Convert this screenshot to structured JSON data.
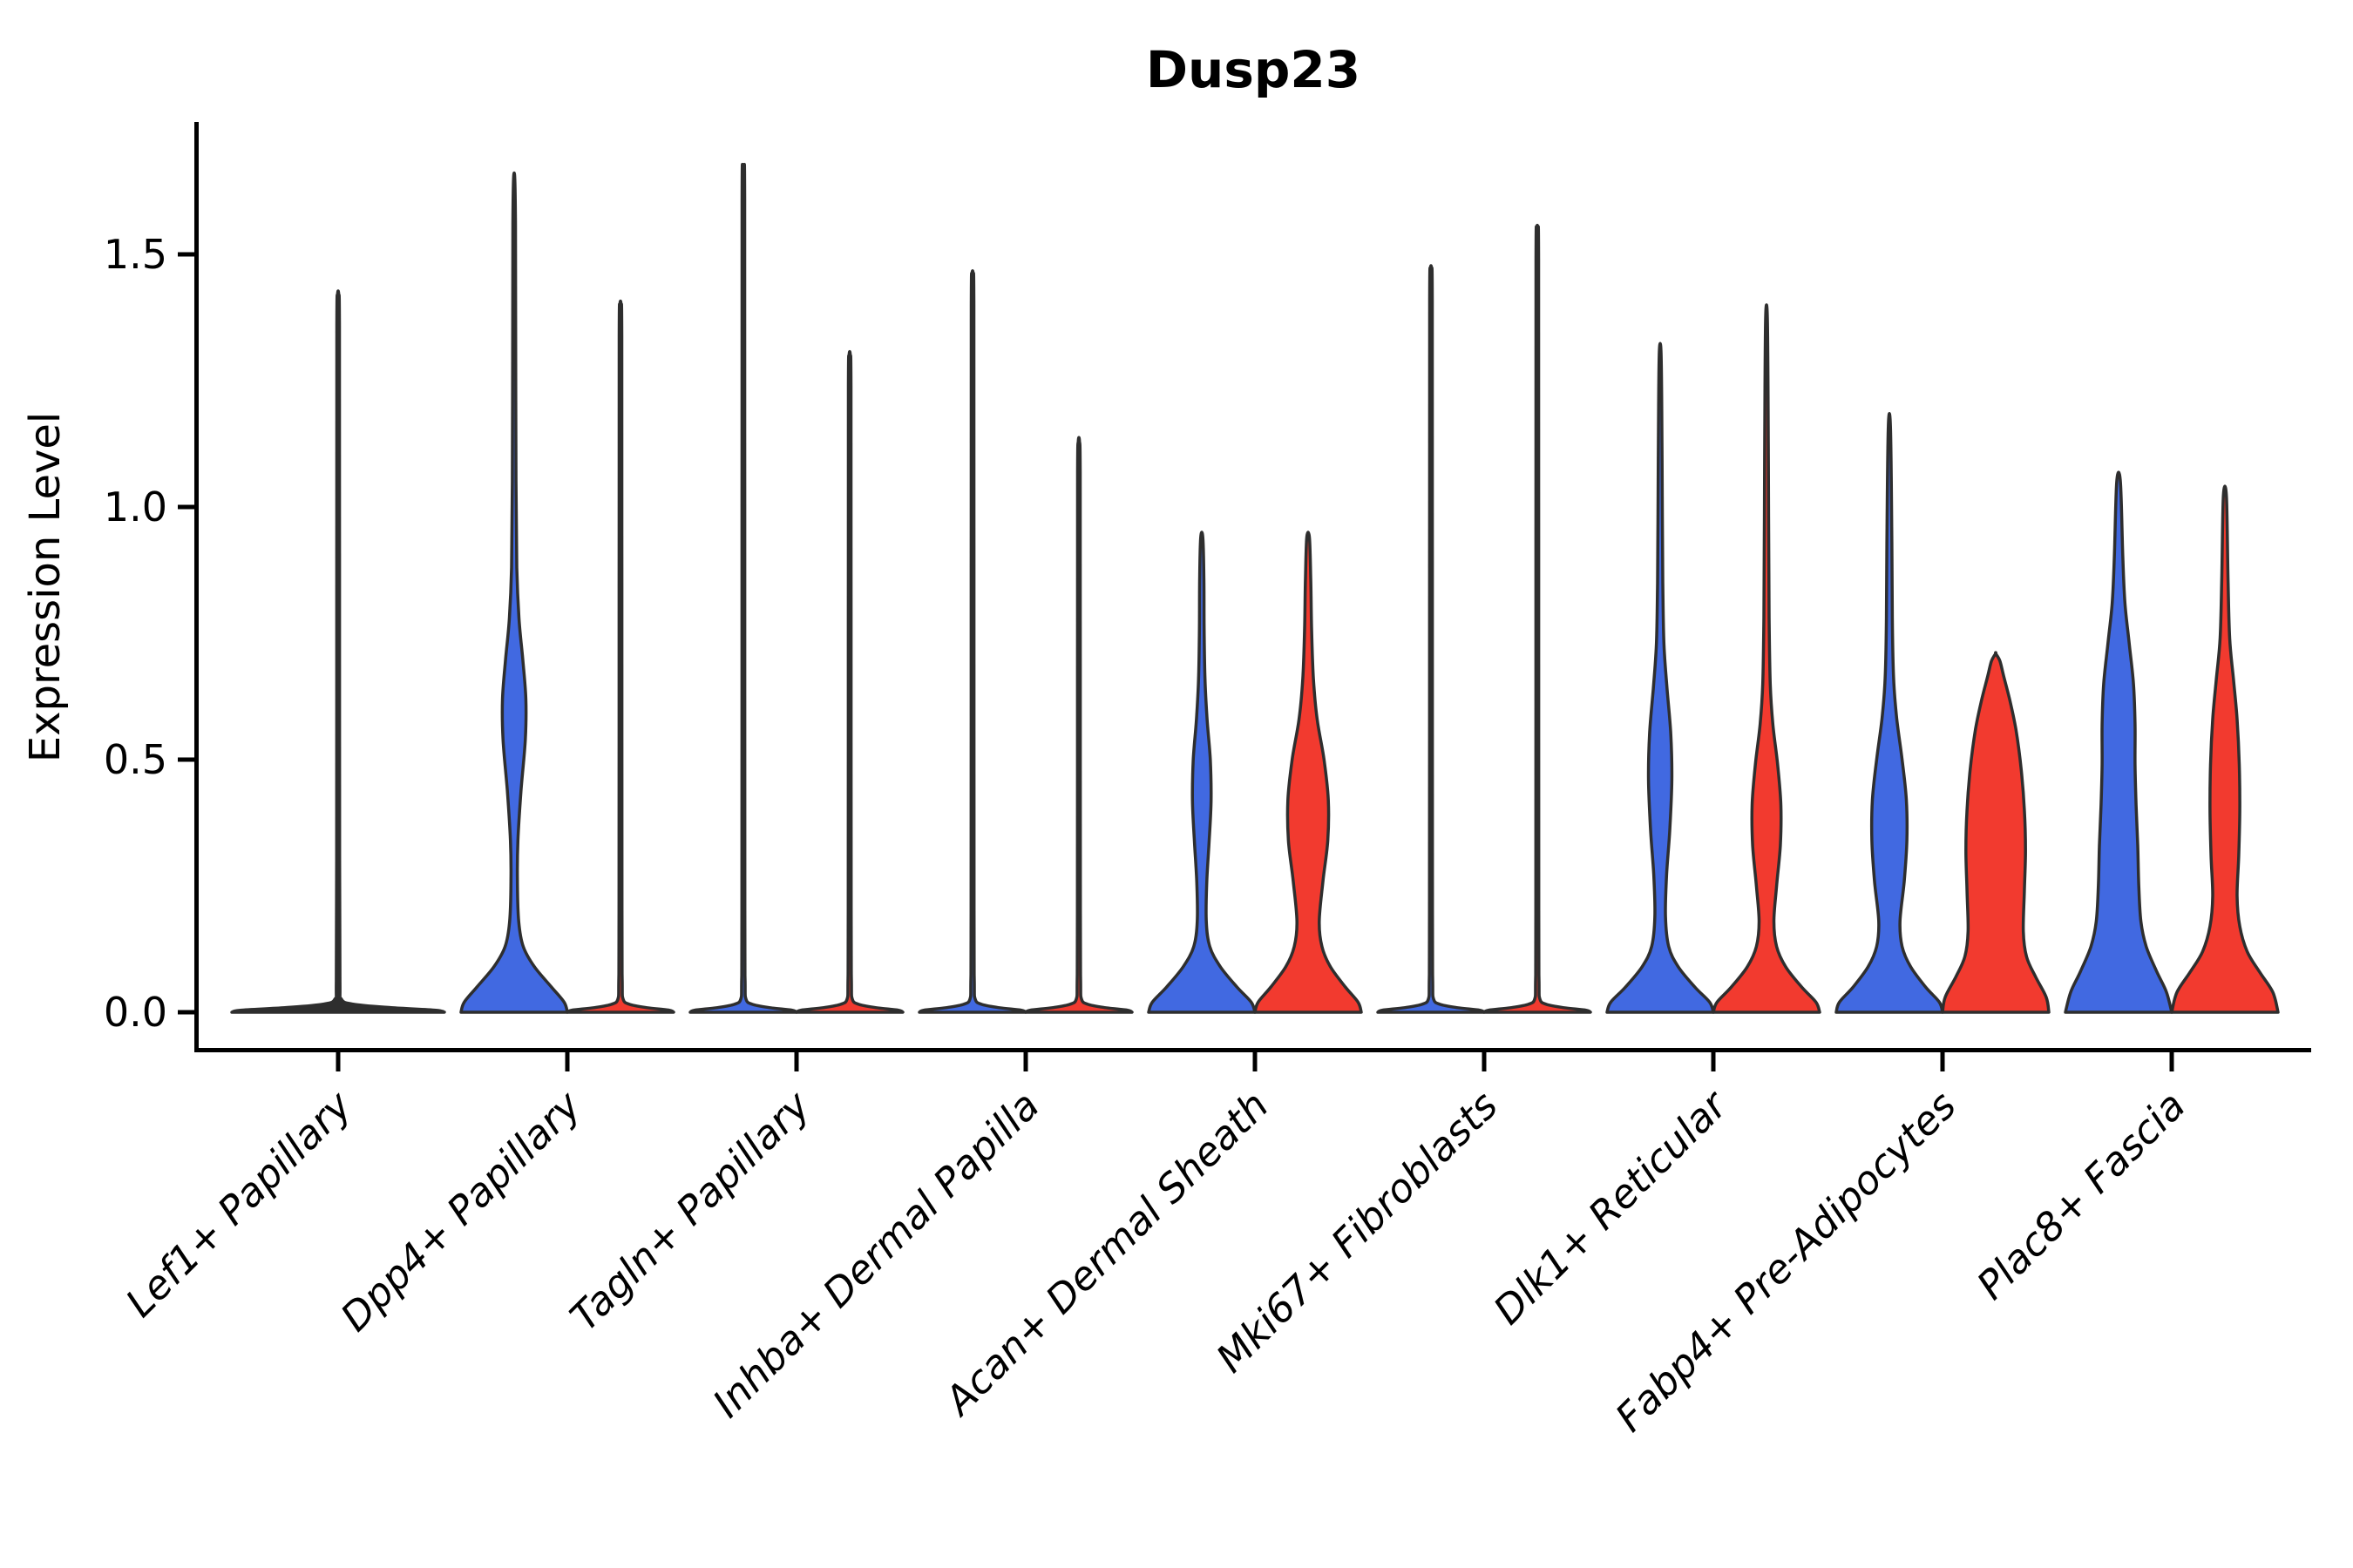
{
  "chart_data": {
    "type": "violin",
    "title": "Dusp23",
    "ylabel": "Expression Level",
    "xlabel": "",
    "yticks": [
      "0.0",
      "0.5",
      "1.0",
      "1.5"
    ],
    "ytick_values": [
      0.0,
      0.5,
      1.0,
      1.5
    ],
    "ylim": [
      0.0,
      1.76
    ],
    "grid": false,
    "legend": "none",
    "colors": {
      "blue": "#4169E1",
      "red": "#F23A2F",
      "outline": "#2E2E2E",
      "axis": "#000000"
    },
    "categories": [
      "Lef1+ Papillary",
      "Dpp4+ Papillary",
      "Tagln+ Papillary",
      "Inhba+ Dermal Papilla",
      "Acan+ Dermal Sheath",
      "Mki67+ Fibroblasts",
      "Dlk1+ Reticular",
      "Fabp4+ Pre-Adipocytes",
      "Plac8+ Fascia"
    ],
    "violins": [
      {
        "category": "Lef1+ Papillary",
        "group": "combined",
        "color": "outline",
        "max": 1.42,
        "offset": 0,
        "width_scale": 2,
        "profile": [
          [
            0,
            1
          ],
          [
            0.004,
            0.92
          ],
          [
            0.009,
            0.5
          ],
          [
            0.016,
            0.14
          ],
          [
            0.026,
            0.03
          ],
          [
            0.06,
            0.017
          ],
          [
            0.3,
            0.014
          ],
          [
            0.9,
            0.013
          ],
          [
            1.36,
            0.012
          ],
          [
            1.42,
            0.006
          ]
        ]
      },
      {
        "category": "Dpp4+ Papillary",
        "group": "blue",
        "color": "blue",
        "max": 1.65,
        "offset": -1,
        "width_scale": 1,
        "profile": [
          [
            0,
            1
          ],
          [
            0.02,
            0.94
          ],
          [
            0.05,
            0.7
          ],
          [
            0.09,
            0.38
          ],
          [
            0.13,
            0.17
          ],
          [
            0.18,
            0.085
          ],
          [
            0.26,
            0.06
          ],
          [
            0.34,
            0.07
          ],
          [
            0.44,
            0.13
          ],
          [
            0.54,
            0.21
          ],
          [
            0.62,
            0.22
          ],
          [
            0.7,
            0.16
          ],
          [
            0.78,
            0.09
          ],
          [
            0.88,
            0.05
          ],
          [
            1.05,
            0.035
          ],
          [
            1.35,
            0.028
          ],
          [
            1.56,
            0.024
          ],
          [
            1.65,
            0.012
          ]
        ]
      },
      {
        "category": "Dpp4+ Papillary",
        "group": "red",
        "color": "red",
        "max": 1.4,
        "offset": 1,
        "width_scale": 1,
        "profile": [
          [
            0,
            1
          ],
          [
            0.004,
            0.92
          ],
          [
            0.009,
            0.5
          ],
          [
            0.016,
            0.16
          ],
          [
            0.026,
            0.05
          ],
          [
            0.06,
            0.032
          ],
          [
            0.2,
            0.028
          ],
          [
            0.84,
            0.026
          ],
          [
            1.34,
            0.024
          ],
          [
            1.4,
            0.012
          ]
        ]
      },
      {
        "category": "Tagln+ Papillary",
        "group": "blue",
        "color": "blue",
        "max": 1.67,
        "offset": -1,
        "width_scale": 1,
        "profile": [
          [
            0,
            1
          ],
          [
            0.004,
            0.92
          ],
          [
            0.009,
            0.5
          ],
          [
            0.016,
            0.16
          ],
          [
            0.026,
            0.05
          ],
          [
            0.06,
            0.032
          ],
          [
            0.2,
            0.028
          ],
          [
            1.0,
            0.026
          ],
          [
            1.61,
            0.024
          ],
          [
            1.67,
            0.012
          ]
        ]
      },
      {
        "category": "Tagln+ Papillary",
        "group": "red",
        "color": "red",
        "max": 1.3,
        "offset": 1,
        "width_scale": 1,
        "profile": [
          [
            0,
            1
          ],
          [
            0.004,
            0.92
          ],
          [
            0.009,
            0.5
          ],
          [
            0.016,
            0.16
          ],
          [
            0.026,
            0.05
          ],
          [
            0.06,
            0.032
          ],
          [
            0.2,
            0.028
          ],
          [
            0.78,
            0.026
          ],
          [
            1.24,
            0.024
          ],
          [
            1.3,
            0.012
          ]
        ]
      },
      {
        "category": "Inhba+ Dermal Papilla",
        "group": "blue",
        "color": "blue",
        "max": 1.46,
        "offset": -1,
        "width_scale": 1,
        "profile": [
          [
            0,
            1
          ],
          [
            0.004,
            0.92
          ],
          [
            0.009,
            0.5
          ],
          [
            0.016,
            0.16
          ],
          [
            0.026,
            0.05
          ],
          [
            0.06,
            0.032
          ],
          [
            0.2,
            0.028
          ],
          [
            0.88,
            0.026
          ],
          [
            1.4,
            0.024
          ],
          [
            1.46,
            0.012
          ]
        ]
      },
      {
        "category": "Inhba+ Dermal Papilla",
        "group": "red",
        "color": "red",
        "max": 1.13,
        "offset": 1,
        "width_scale": 1,
        "profile": [
          [
            0,
            1
          ],
          [
            0.004,
            0.92
          ],
          [
            0.009,
            0.5
          ],
          [
            0.016,
            0.16
          ],
          [
            0.026,
            0.05
          ],
          [
            0.06,
            0.032
          ],
          [
            0.2,
            0.028
          ],
          [
            0.68,
            0.026
          ],
          [
            1.07,
            0.024
          ],
          [
            1.13,
            0.012
          ]
        ]
      },
      {
        "category": "Acan+ Dermal Sheath",
        "group": "blue",
        "color": "blue",
        "max": 0.94,
        "offset": -1,
        "width_scale": 1,
        "profile": [
          [
            0,
            1
          ],
          [
            0.02,
            0.93
          ],
          [
            0.05,
            0.66
          ],
          [
            0.09,
            0.35
          ],
          [
            0.13,
            0.15
          ],
          [
            0.18,
            0.085
          ],
          [
            0.26,
            0.095
          ],
          [
            0.34,
            0.14
          ],
          [
            0.42,
            0.175
          ],
          [
            0.5,
            0.16
          ],
          [
            0.58,
            0.1
          ],
          [
            0.66,
            0.06
          ],
          [
            0.76,
            0.045
          ],
          [
            0.86,
            0.04
          ],
          [
            0.94,
            0.02
          ]
        ]
      },
      {
        "category": "Acan+ Dermal Sheath",
        "group": "red",
        "color": "red",
        "max": 0.94,
        "offset": 1,
        "width_scale": 1,
        "profile": [
          [
            0,
            1
          ],
          [
            0.02,
            0.94
          ],
          [
            0.05,
            0.7
          ],
          [
            0.09,
            0.42
          ],
          [
            0.13,
            0.26
          ],
          [
            0.18,
            0.21
          ],
          [
            0.26,
            0.28
          ],
          [
            0.34,
            0.37
          ],
          [
            0.42,
            0.38
          ],
          [
            0.5,
            0.3
          ],
          [
            0.58,
            0.17
          ],
          [
            0.66,
            0.1
          ],
          [
            0.76,
            0.065
          ],
          [
            0.86,
            0.05
          ],
          [
            0.94,
            0.025
          ]
        ]
      },
      {
        "category": "Mki67+ Fibroblasts",
        "group": "blue",
        "color": "blue",
        "max": 1.47,
        "offset": -1,
        "width_scale": 1,
        "profile": [
          [
            0,
            1
          ],
          [
            0.004,
            0.92
          ],
          [
            0.009,
            0.5
          ],
          [
            0.016,
            0.16
          ],
          [
            0.026,
            0.05
          ],
          [
            0.06,
            0.032
          ],
          [
            0.2,
            0.028
          ],
          [
            0.88,
            0.026
          ],
          [
            1.41,
            0.024
          ],
          [
            1.47,
            0.012
          ]
        ]
      },
      {
        "category": "Mki67+ Fibroblasts",
        "group": "red",
        "color": "red",
        "max": 1.55,
        "offset": 1,
        "width_scale": 1,
        "profile": [
          [
            0,
            1
          ],
          [
            0.004,
            0.92
          ],
          [
            0.009,
            0.5
          ],
          [
            0.016,
            0.16
          ],
          [
            0.026,
            0.05
          ],
          [
            0.06,
            0.032
          ],
          [
            0.2,
            0.028
          ],
          [
            0.93,
            0.026
          ],
          [
            1.49,
            0.024
          ],
          [
            1.55,
            0.012
          ]
        ]
      },
      {
        "category": "Dlk1+ Reticular",
        "group": "blue",
        "color": "blue",
        "max": 1.31,
        "offset": -1,
        "width_scale": 1,
        "profile": [
          [
            0,
            1
          ],
          [
            0.02,
            0.93
          ],
          [
            0.05,
            0.65
          ],
          [
            0.09,
            0.34
          ],
          [
            0.13,
            0.16
          ],
          [
            0.19,
            0.1
          ],
          [
            0.27,
            0.12
          ],
          [
            0.36,
            0.18
          ],
          [
            0.46,
            0.22
          ],
          [
            0.55,
            0.2
          ],
          [
            0.64,
            0.13
          ],
          [
            0.73,
            0.07
          ],
          [
            0.85,
            0.05
          ],
          [
            1.02,
            0.04
          ],
          [
            1.2,
            0.03
          ],
          [
            1.31,
            0.015
          ]
        ]
      },
      {
        "category": "Dlk1+ Reticular",
        "group": "red",
        "color": "red",
        "max": 1.38,
        "offset": 1,
        "width_scale": 1,
        "profile": [
          [
            0,
            1
          ],
          [
            0.02,
            0.93
          ],
          [
            0.05,
            0.66
          ],
          [
            0.09,
            0.36
          ],
          [
            0.13,
            0.19
          ],
          [
            0.18,
            0.14
          ],
          [
            0.25,
            0.19
          ],
          [
            0.33,
            0.26
          ],
          [
            0.41,
            0.27
          ],
          [
            0.49,
            0.21
          ],
          [
            0.57,
            0.12
          ],
          [
            0.65,
            0.07
          ],
          [
            0.78,
            0.05
          ],
          [
            0.98,
            0.04
          ],
          [
            1.22,
            0.03
          ],
          [
            1.38,
            0.015
          ]
        ]
      },
      {
        "category": "Fabp4+ Pre-Adipocytes",
        "group": "blue",
        "color": "blue",
        "max": 1.16,
        "offset": -1,
        "width_scale": 1,
        "profile": [
          [
            0,
            1
          ],
          [
            0.02,
            0.94
          ],
          [
            0.05,
            0.68
          ],
          [
            0.09,
            0.4
          ],
          [
            0.13,
            0.24
          ],
          [
            0.18,
            0.2
          ],
          [
            0.26,
            0.28
          ],
          [
            0.34,
            0.33
          ],
          [
            0.42,
            0.32
          ],
          [
            0.5,
            0.24
          ],
          [
            0.58,
            0.14
          ],
          [
            0.66,
            0.08
          ],
          [
            0.78,
            0.055
          ],
          [
            0.96,
            0.045
          ],
          [
            1.16,
            0.02
          ]
        ]
      },
      {
        "category": "Fabp4+ Pre-Adipocytes",
        "group": "red",
        "color": "red",
        "max": 0.71,
        "offset": 1,
        "width_scale": 1,
        "profile": [
          [
            0,
            1
          ],
          [
            0.03,
            0.95
          ],
          [
            0.07,
            0.75
          ],
          [
            0.11,
            0.58
          ],
          [
            0.16,
            0.52
          ],
          [
            0.24,
            0.54
          ],
          [
            0.32,
            0.56
          ],
          [
            0.4,
            0.54
          ],
          [
            0.48,
            0.48
          ],
          [
            0.56,
            0.38
          ],
          [
            0.62,
            0.26
          ],
          [
            0.665,
            0.15
          ],
          [
            0.695,
            0.08
          ],
          [
            0.71,
            0
          ]
        ]
      },
      {
        "category": "Plac8+ Fascia",
        "group": "blue",
        "color": "blue",
        "max": 1.05,
        "offset": -1,
        "width_scale": 1,
        "profile": [
          [
            0,
            1
          ],
          [
            0.04,
            0.9
          ],
          [
            0.08,
            0.72
          ],
          [
            0.13,
            0.52
          ],
          [
            0.18,
            0.42
          ],
          [
            0.25,
            0.38
          ],
          [
            0.33,
            0.36
          ],
          [
            0.41,
            0.33
          ],
          [
            0.49,
            0.31
          ],
          [
            0.57,
            0.31
          ],
          [
            0.65,
            0.28
          ],
          [
            0.73,
            0.2
          ],
          [
            0.81,
            0.12
          ],
          [
            0.9,
            0.08
          ],
          [
            1.05,
            0.035
          ]
        ]
      },
      {
        "category": "Plac8+ Fascia",
        "group": "red",
        "color": "red",
        "max": 1.02,
        "offset": 1,
        "width_scale": 1,
        "profile": [
          [
            0,
            1
          ],
          [
            0.04,
            0.9
          ],
          [
            0.08,
            0.65
          ],
          [
            0.12,
            0.42
          ],
          [
            0.17,
            0.28
          ],
          [
            0.23,
            0.23
          ],
          [
            0.31,
            0.26
          ],
          [
            0.4,
            0.28
          ],
          [
            0.49,
            0.27
          ],
          [
            0.58,
            0.23
          ],
          [
            0.66,
            0.16
          ],
          [
            0.74,
            0.09
          ],
          [
            0.85,
            0.06
          ],
          [
            1.02,
            0.03
          ]
        ]
      }
    ]
  }
}
